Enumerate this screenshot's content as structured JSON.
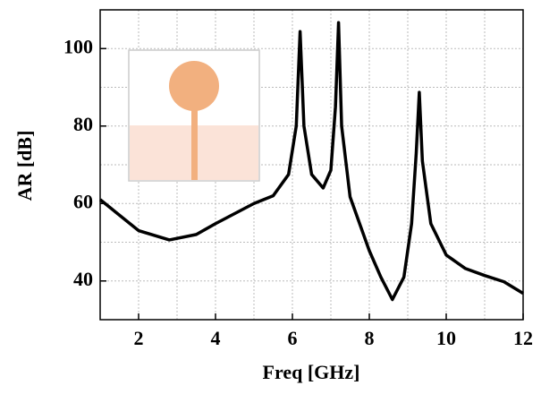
{
  "chart_data": {
    "type": "line",
    "x_label": "Freq [GHz]",
    "y_label": "AR [dB]",
    "xlim": [
      1,
      12
    ],
    "ylim": [
      30,
      110
    ],
    "xticks": [
      2,
      4,
      6,
      8,
      10,
      12
    ],
    "yticks": [
      40,
      60,
      80,
      100
    ],
    "minor_xticks": [
      1,
      3,
      5,
      7,
      9,
      11
    ],
    "minor_yticks": [
      50,
      70,
      90
    ],
    "grid": true,
    "series": [
      {
        "color": "#000000",
        "x": [
          1,
          2,
          2.8,
          3.5,
          4,
          5,
          5.5,
          5.9,
          6.1,
          6.2,
          6.3,
          6.5,
          6.8,
          7.0,
          7.12,
          7.2,
          7.28,
          7.5,
          8,
          8.3,
          8.6,
          8.9,
          9.1,
          9.22,
          9.3,
          9.38,
          9.6,
          10,
          10.5,
          11,
          11.5,
          12
        ],
        "values": [
          61,
          53,
          50.6,
          52,
          54.8,
          60,
          62,
          67.5,
          80,
          104.4,
          80,
          67.5,
          64,
          68.6,
          85,
          106.7,
          80,
          61.7,
          47.8,
          41,
          35.2,
          41,
          54.8,
          73,
          88.7,
          71,
          54.8,
          46.7,
          43.2,
          41.4,
          39.8,
          36.8
        ]
      }
    ]
  }
}
